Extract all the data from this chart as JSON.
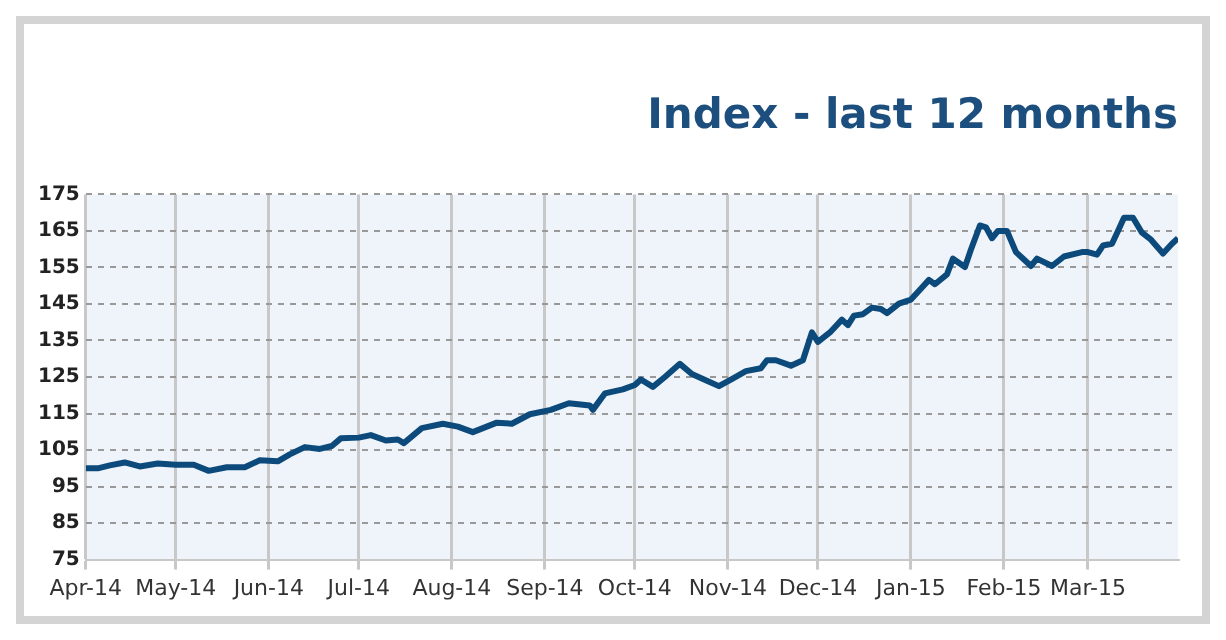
{
  "chart_data": {
    "type": "line",
    "title": "Index - last 12 months",
    "x": [
      "2014-04-01",
      "2014-04-05",
      "2014-04-09",
      "2014-04-14",
      "2014-04-19",
      "2014-04-25",
      "2014-05-01",
      "2014-05-07",
      "2014-05-12",
      "2014-05-18",
      "2014-05-24",
      "2014-05-29",
      "2014-06-04",
      "2014-06-08",
      "2014-06-13",
      "2014-06-18",
      "2014-06-22",
      "2014-06-25",
      "2014-07-01",
      "2014-07-05",
      "2014-07-10",
      "2014-07-14",
      "2014-07-16",
      "2014-07-22",
      "2014-07-29",
      "2014-08-03",
      "2014-08-08",
      "2014-08-16",
      "2014-08-21",
      "2014-08-27",
      "2014-09-03",
      "2014-09-09",
      "2014-09-16",
      "2014-09-17",
      "2014-09-21",
      "2014-09-27",
      "2014-10-01",
      "2014-10-03",
      "2014-10-07",
      "2014-10-11",
      "2014-10-16",
      "2014-10-20",
      "2014-10-25",
      "2014-10-29",
      "2014-11-02",
      "2014-11-07",
      "2014-11-12",
      "2014-11-14",
      "2014-11-17",
      "2014-11-22",
      "2014-11-26",
      "2014-11-29",
      "2014-12-01",
      "2014-12-05",
      "2014-12-09",
      "2014-12-11",
      "2014-12-13",
      "2014-12-16",
      "2014-12-19",
      "2014-12-22",
      "2014-12-24",
      "2014-12-28",
      "2015-01-01",
      "2015-01-04",
      "2015-01-07",
      "2015-01-09",
      "2015-01-13",
      "2015-01-15",
      "2015-01-19",
      "2015-01-21",
      "2015-01-24",
      "2015-01-26",
      "2015-01-28",
      "2015-01-30",
      "2015-02-02",
      "2015-02-05",
      "2015-02-10",
      "2015-02-12",
      "2015-02-17",
      "2015-02-21",
      "2015-02-27",
      "2015-03-01",
      "2015-03-04",
      "2015-03-06",
      "2015-03-09",
      "2015-03-11",
      "2015-03-13",
      "2015-03-16",
      "2015-03-19",
      "2015-03-22",
      "2015-03-26",
      "2015-03-29",
      "2015-03-31"
    ],
    "series": [
      {
        "color": "#0d4a7c",
        "values": [
          100,
          100,
          100.8,
          101.6,
          100.5,
          101.3,
          101,
          101,
          99.3,
          100.3,
          100.3,
          102.2,
          101.9,
          103.8,
          105.8,
          105.3,
          106.1,
          108.2,
          108.4,
          109.1,
          107.6,
          107.9,
          106.9,
          111,
          112.2,
          111.4,
          109.9,
          112.5,
          112.2,
          114.8,
          116,
          117.8,
          117.2,
          116,
          120.5,
          121.6,
          122.8,
          124.3,
          122.3,
          125,
          128.6,
          125.8,
          124,
          122.5,
          124.3,
          126.6,
          127.4,
          129.6,
          129.6,
          128.1,
          129.6,
          137.2,
          134.6,
          137.2,
          140.7,
          139.2,
          141.8,
          142.2,
          144,
          143.6,
          142.5,
          145.1,
          146.2,
          148.9,
          151.6,
          150.4,
          153.1,
          157.4,
          155.1,
          159.9,
          166.5,
          166,
          163,
          165,
          165,
          159.2,
          155.4,
          157.4,
          155.4,
          158,
          159.2,
          159.2,
          158.5,
          161,
          161.5,
          165,
          168.6,
          168.6,
          164.5,
          162.6,
          158.8,
          161.5,
          163
        ]
      }
    ],
    "xlim": [
      "2014-04-01",
      "2015-03-31"
    ],
    "xticks": [
      {
        "value": "2014-04-01",
        "label": "Apr-14"
      },
      {
        "value": "2014-05-01",
        "label": "May-14"
      },
      {
        "value": "2014-06-01",
        "label": "Jun-14"
      },
      {
        "value": "2014-07-01",
        "label": "Jul-14"
      },
      {
        "value": "2014-08-01",
        "label": "Aug-14"
      },
      {
        "value": "2014-09-01",
        "label": "Sep-14"
      },
      {
        "value": "2014-10-01",
        "label": "Oct-14"
      },
      {
        "value": "2014-11-01",
        "label": "Nov-14"
      },
      {
        "value": "2014-12-01",
        "label": "Dec-14"
      },
      {
        "value": "2015-01-01",
        "label": "Jan-15"
      },
      {
        "value": "2015-02-01",
        "label": "Feb-15"
      },
      {
        "value": "2015-03-01",
        "label": "Mar-15"
      }
    ],
    "ylim": [
      75,
      175
    ],
    "yticks": [
      75,
      85,
      95,
      105,
      115,
      125,
      135,
      145,
      155,
      165,
      175
    ],
    "grid": true,
    "legend": false,
    "marker": "none",
    "line_style": "solid"
  }
}
